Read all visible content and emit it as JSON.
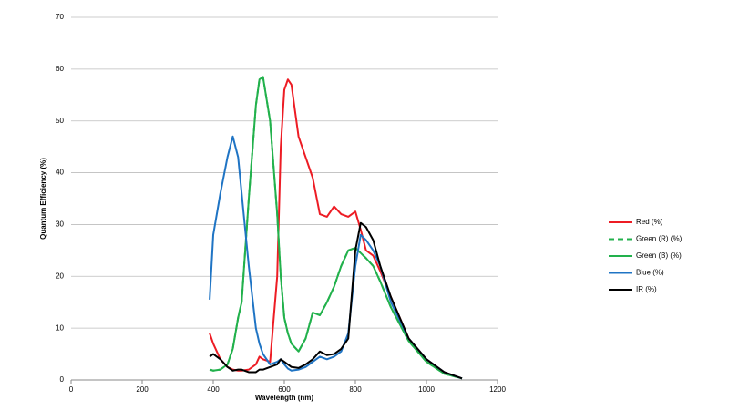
{
  "chart_data": {
    "type": "line",
    "x_label": "Wavelength (nm)",
    "y_label": "Quantum Efficiency (%)",
    "x": [
      390,
      400,
      420,
      440,
      455,
      470,
      480,
      500,
      520,
      530,
      540,
      560,
      580,
      590,
      600,
      610,
      620,
      640,
      660,
      680,
      700,
      720,
      740,
      760,
      780,
      800,
      815,
      830,
      850,
      870,
      900,
      950,
      1000,
      1050,
      1100
    ],
    "series": [
      {
        "name": "Red (%)",
        "color": "#ed1c24",
        "dashed": false,
        "values": [
          9,
          7,
          4,
          2.5,
          2,
          1.8,
          1.8,
          2,
          3,
          4.5,
          4,
          3.5,
          20,
          45,
          56,
          58,
          57,
          47,
          43,
          39,
          32,
          31.5,
          33.5,
          32,
          31.5,
          32.5,
          29,
          25,
          24,
          21,
          16,
          8,
          4,
          1.5,
          0.3
        ]
      },
      {
        "name": "Green (R) (%)",
        "color": "#22b14c",
        "dashed": true,
        "values": [
          2,
          1.8,
          2,
          3,
          6,
          12,
          15,
          35,
          53,
          58,
          58.5,
          50,
          32,
          20,
          12,
          9,
          7,
          5.5,
          8,
          13,
          12.5,
          15,
          18,
          22,
          25,
          25.5,
          24.5,
          23.5,
          22,
          19,
          14,
          7.5,
          3.5,
          1.2,
          0.3
        ]
      },
      {
        "name": "Green (B) (%)",
        "color": "#22b14c",
        "dashed": false,
        "values": [
          2,
          1.8,
          2,
          3,
          6,
          12,
          15,
          35,
          53,
          58,
          58.5,
          50,
          32,
          20,
          12,
          9,
          7,
          5.5,
          8,
          13,
          12.5,
          15,
          18,
          22,
          25,
          25.5,
          24.5,
          23.5,
          22,
          19,
          14,
          7.5,
          3.5,
          1.2,
          0.3
        ]
      },
      {
        "name": "Blue (%)",
        "color": "#1f74c4",
        "dashed": false,
        "values": [
          15.5,
          28,
          36,
          43,
          47,
          43,
          36,
          22,
          10,
          7,
          5,
          3,
          3.5,
          4,
          3,
          2.2,
          1.8,
          2,
          2.5,
          3.5,
          4.5,
          4,
          4.5,
          5.5,
          9,
          22,
          28,
          27,
          25,
          22,
          15,
          8,
          4,
          1.5,
          0.3
        ]
      },
      {
        "name": "IR (%)",
        "color": "#000000",
        "dashed": false,
        "values": [
          4.5,
          5,
          4,
          2.5,
          1.8,
          2,
          2,
          1.5,
          1.5,
          2,
          2,
          2.5,
          3,
          4,
          3.5,
          3,
          2.5,
          2.3,
          3,
          4,
          5.5,
          4.8,
          5,
          6,
          8,
          25,
          30.3,
          29.5,
          27,
          22,
          16,
          8,
          4,
          1.5,
          0.3
        ]
      }
    ],
    "xlim": [
      0,
      1200
    ],
    "xticks": [
      0,
      200,
      400,
      600,
      800,
      1000,
      1200
    ],
    "ylim": [
      0,
      70
    ],
    "yticks": [
      0,
      10,
      20,
      30,
      40,
      50,
      60,
      70
    ],
    "grid": true,
    "legend": "right"
  }
}
